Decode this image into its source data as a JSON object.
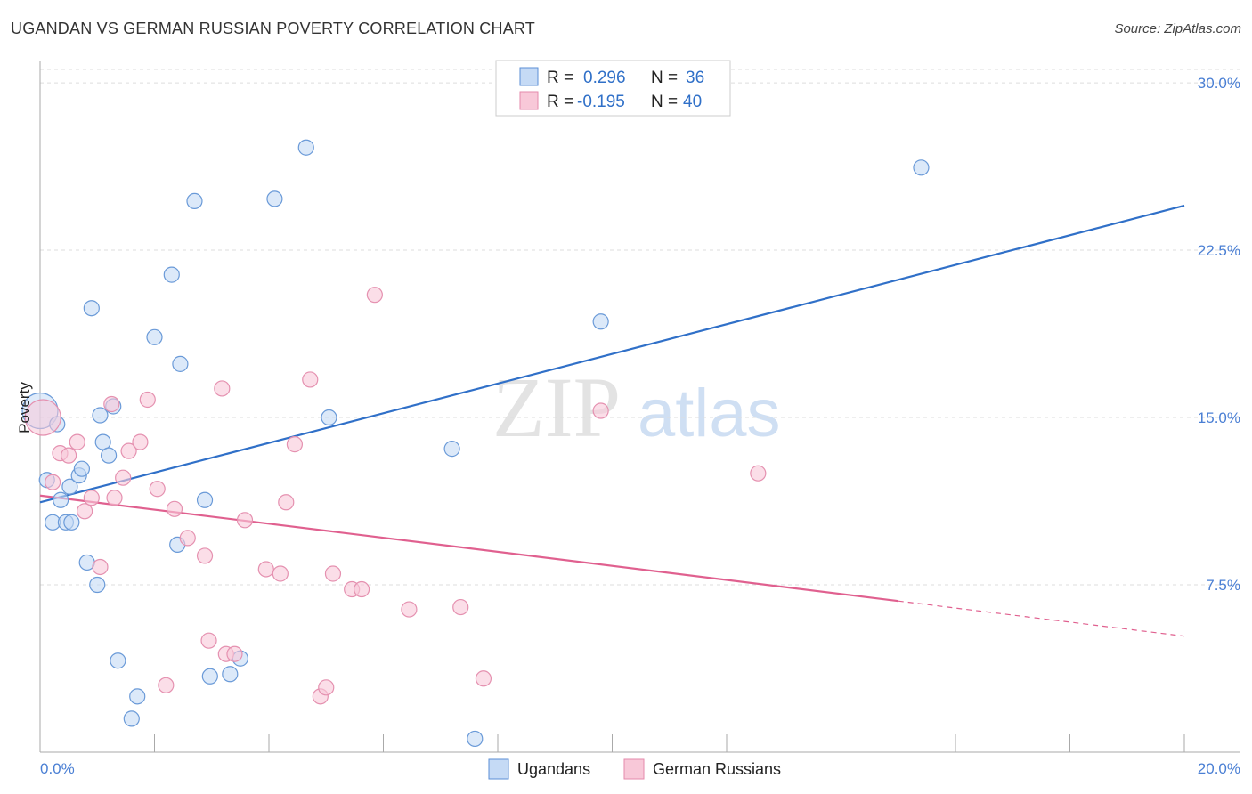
{
  "title": "UGANDAN VS GERMAN RUSSIAN POVERTY CORRELATION CHART",
  "source": "Source: ZipAtlas.com",
  "watermark": {
    "zip": "ZIP",
    "atlas": "atlas"
  },
  "colors": {
    "blue": "#3070c8",
    "blue_fill": "#c5daf5",
    "pink": "#e0608f",
    "pink_fill": "#f8c8d8",
    "axis_tick": "#4a7fd4",
    "grid": "#dddddd"
  },
  "legend": {
    "r_label": "R =",
    "n_label": "N =",
    "rows": [
      {
        "series": "Ugandans",
        "r": "0.296",
        "n": "36"
      },
      {
        "series": "German Russians",
        "r": "-0.195",
        "n": "40"
      }
    ]
  },
  "chart_data": {
    "type": "scatter",
    "title": "UGANDAN VS GERMAN RUSSIAN POVERTY CORRELATION CHART",
    "xlabel": "",
    "ylabel": "Poverty",
    "xlim": [
      0,
      20
    ],
    "ylim": [
      0,
      31
    ],
    "x_tick_labels": [
      "0.0%",
      "20.0%"
    ],
    "y_ticks": [
      7.5,
      15.0,
      22.5,
      30.0
    ],
    "y_tick_labels": [
      "7.5%",
      "15.0%",
      "22.5%",
      "30.0%"
    ],
    "legend_position": "top-center",
    "series": [
      {
        "name": "Ugandans",
        "color": "#3070c8",
        "points": [
          [
            0.0,
            15.3
          ],
          [
            0.12,
            12.2
          ],
          [
            0.3,
            14.7
          ],
          [
            0.36,
            11.3
          ],
          [
            0.22,
            10.3
          ],
          [
            0.45,
            10.3
          ],
          [
            0.55,
            10.3
          ],
          [
            0.52,
            11.9
          ],
          [
            0.68,
            12.4
          ],
          [
            0.73,
            12.7
          ],
          [
            0.82,
            8.5
          ],
          [
            1.0,
            7.5
          ],
          [
            1.05,
            15.1
          ],
          [
            1.1,
            13.9
          ],
          [
            1.2,
            13.3
          ],
          [
            1.28,
            15.5
          ],
          [
            0.9,
            19.9
          ],
          [
            1.36,
            4.1
          ],
          [
            1.6,
            1.5
          ],
          [
            1.7,
            2.5
          ],
          [
            2.0,
            18.6
          ],
          [
            2.3,
            21.4
          ],
          [
            2.4,
            9.3
          ],
          [
            2.45,
            17.4
          ],
          [
            2.7,
            24.7
          ],
          [
            2.88,
            11.3
          ],
          [
            2.97,
            3.4
          ],
          [
            3.32,
            3.5
          ],
          [
            3.5,
            4.2
          ],
          [
            4.1,
            24.8
          ],
          [
            4.65,
            27.1
          ],
          [
            5.05,
            15.0
          ],
          [
            7.2,
            13.6
          ],
          [
            7.6,
            0.6
          ],
          [
            9.8,
            19.3
          ],
          [
            15.4,
            26.2
          ]
        ]
      },
      {
        "name": "German Russians",
        "color": "#e0608f",
        "points": [
          [
            0.05,
            15.0
          ],
          [
            0.22,
            12.1
          ],
          [
            0.35,
            13.4
          ],
          [
            0.5,
            13.3
          ],
          [
            0.65,
            13.9
          ],
          [
            0.78,
            10.8
          ],
          [
            0.9,
            11.4
          ],
          [
            1.05,
            8.3
          ],
          [
            1.25,
            15.6
          ],
          [
            1.3,
            11.4
          ],
          [
            1.45,
            12.3
          ],
          [
            1.55,
            13.5
          ],
          [
            1.75,
            13.9
          ],
          [
            1.88,
            15.8
          ],
          [
            2.05,
            11.8
          ],
          [
            2.2,
            3.0
          ],
          [
            2.35,
            10.9
          ],
          [
            2.58,
            9.6
          ],
          [
            2.88,
            8.8
          ],
          [
            2.95,
            5.0
          ],
          [
            3.18,
            16.3
          ],
          [
            3.25,
            4.4
          ],
          [
            3.4,
            4.4
          ],
          [
            3.58,
            10.4
          ],
          [
            3.95,
            8.2
          ],
          [
            4.2,
            8.0
          ],
          [
            4.3,
            11.2
          ],
          [
            4.45,
            13.8
          ],
          [
            4.72,
            16.7
          ],
          [
            4.9,
            2.5
          ],
          [
            5.0,
            2.9
          ],
          [
            5.12,
            8.0
          ],
          [
            5.45,
            7.3
          ],
          [
            5.62,
            7.3
          ],
          [
            5.85,
            20.5
          ],
          [
            6.45,
            6.4
          ],
          [
            7.35,
            6.5
          ],
          [
            7.75,
            3.3
          ],
          [
            9.8,
            15.3
          ],
          [
            12.55,
            12.5
          ]
        ]
      }
    ],
    "trendlines": [
      {
        "series": "Ugandans",
        "x0": 0,
        "y0": 11.2,
        "x1": 20,
        "y1": 24.5,
        "solid_until": 20
      },
      {
        "series": "German Russians",
        "x0": 0,
        "y0": 11.5,
        "x1": 20,
        "y1": 5.2,
        "solid_until": 15
      }
    ]
  }
}
